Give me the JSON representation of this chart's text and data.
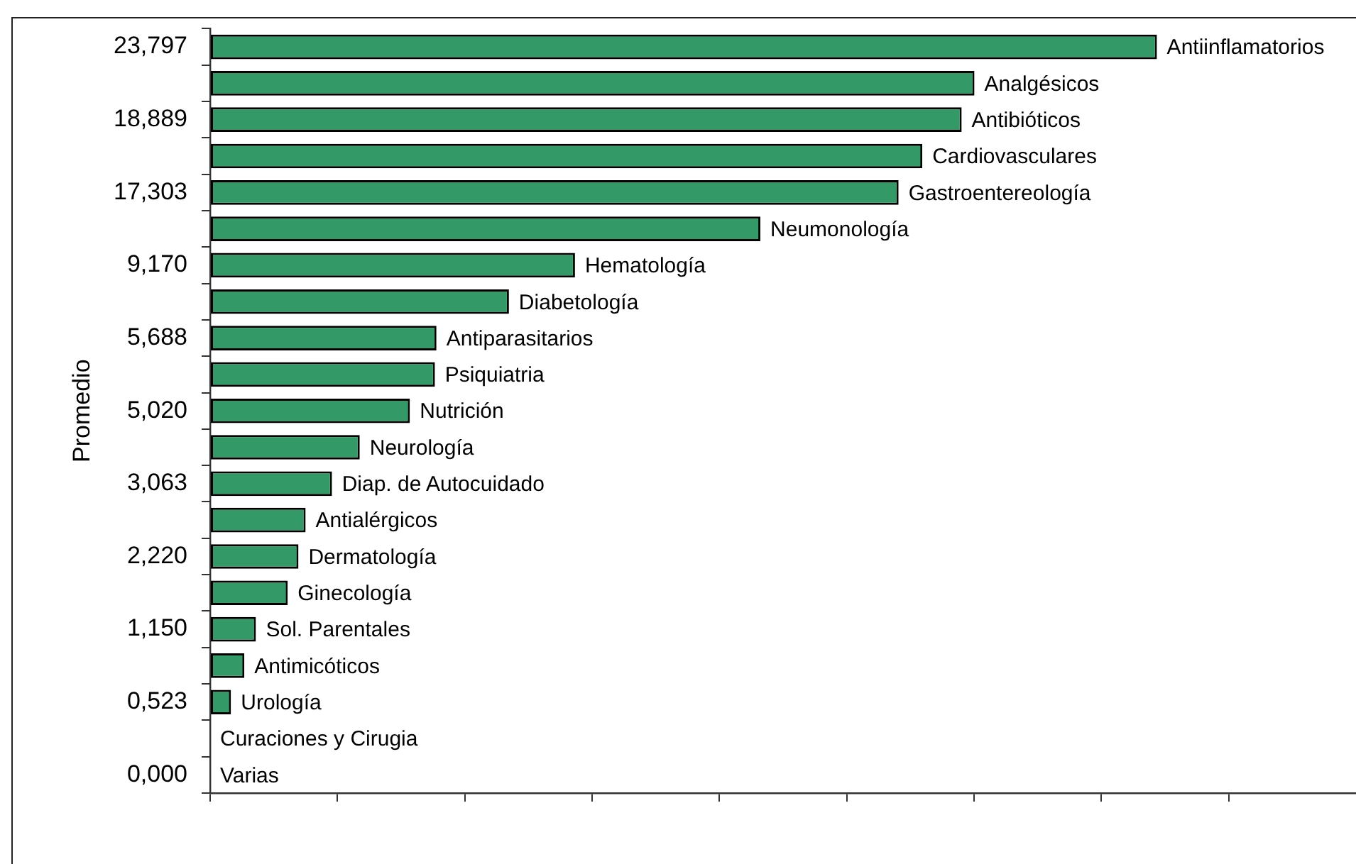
{
  "chart_data": {
    "type": "bar",
    "orientation": "horizontal",
    "ylabel": "Promedio",
    "categories": [
      "Antiinflamatorios",
      "Analgésicos",
      "Antibióticos",
      "Cardiovasculares",
      "Gastroentereología",
      "Neumonología",
      "Hematología",
      "Diabetología",
      "Antiparasitarios",
      "Psiquiatria",
      "Nutrición",
      "Neurología",
      "Diap. de Autocuidado",
      "Antialérgicos",
      "Dermatología",
      "Ginecología",
      "Sol. Parentales",
      "Antimicóticos",
      "Urología",
      "Curaciones y Cirugia",
      "Varias"
    ],
    "values": [
      23.797,
      19.21,
      18.889,
      17.9,
      17.303,
      13.83,
      9.17,
      7.51,
      5.688,
      5.65,
      5.02,
      3.76,
      3.063,
      2.4,
      2.22,
      1.95,
      1.15,
      0.86,
      0.523,
      0,
      0
    ],
    "value_labels": [
      "23,797",
      null,
      "18,889",
      null,
      "17,303",
      null,
      "9,170",
      null,
      "5,688",
      null,
      "5,020",
      null,
      "3,063",
      null,
      "2,220",
      null,
      "1,150",
      null,
      "0,523",
      null,
      "0,000"
    ],
    "color": "#339966",
    "xlim": [
      0,
      28.8
    ],
    "xticks": [
      {
        "value": 0,
        "label": null
      },
      {
        "value": 3.2,
        "label": null
      },
      {
        "value": 6.4,
        "label": null
      },
      {
        "value": 9.6,
        "label": null
      },
      {
        "value": 12.8,
        "label": null
      },
      {
        "value": 16,
        "label": null
      },
      {
        "value": 19.2,
        "label": null
      },
      {
        "value": 22.4,
        "label": null
      },
      {
        "value": 25.6,
        "label": null
      }
    ],
    "tick_labels": "y",
    "grid": false,
    "legend": false
  }
}
